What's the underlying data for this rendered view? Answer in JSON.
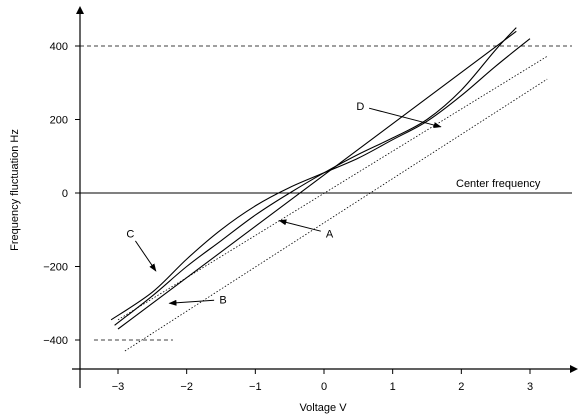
{
  "chart_data": {
    "type": "line",
    "title": "",
    "xlabel": "Voltage  V",
    "ylabel": "Frequency fluctuation  Hz",
    "xlim": [
      -3.55,
      3.55
    ],
    "ylim": [
      -420,
      430
    ],
    "x_ticks": [
      -3,
      -2,
      -1,
      0,
      1,
      2,
      3
    ],
    "x_tick_labels": [
      "−3",
      "−2",
      "−1",
      "0",
      "1",
      "2",
      "3"
    ],
    "y_ticks": [
      -400,
      -200,
      0,
      200,
      400
    ],
    "y_tick_labels": [
      "−400",
      "−200",
      "0",
      "200",
      "400"
    ],
    "grid": false,
    "center_line": {
      "y": 0,
      "label": "Center frequency"
    },
    "limit_lines": [
      {
        "y": 400,
        "x_from": -3.55,
        "x_to": 3.55
      },
      {
        "y": -400,
        "x_from": -3.35,
        "x_to": -2.2
      }
    ],
    "series": [
      {
        "name": "A",
        "style": "solid",
        "x": [
          -3.0,
          2.8
        ],
        "y": [
          -370,
          440
        ]
      },
      {
        "name": "B",
        "style": "dotted",
        "x": [
          -3.0,
          3.25
        ],
        "y": [
          -345,
          372
        ]
      },
      {
        "name": "B",
        "style": "dotted",
        "x": [
          -2.9,
          3.25
        ],
        "y": [
          -430,
          310
        ]
      },
      {
        "name": "C",
        "style": "solid",
        "x": [
          -3.1,
          -2.5,
          -2.0,
          -1.5,
          -1.0,
          -0.5,
          0.0,
          0.5,
          1.0,
          1.5,
          2.0,
          2.5,
          3.0
        ],
        "y": [
          -345,
          -270,
          -180,
          -100,
          -35,
          15,
          55,
          95,
          145,
          195,
          265,
          345,
          420
        ]
      },
      {
        "name": "D",
        "style": "solid",
        "x": [
          -3.05,
          -2.5,
          -2.0,
          -1.5,
          -1.0,
          -0.5,
          0.0,
          0.5,
          1.0,
          1.5,
          2.0,
          2.5,
          2.8
        ],
        "y": [
          -360,
          -280,
          -200,
          -130,
          -60,
          0,
          55,
          105,
          150,
          200,
          280,
          390,
          450
        ]
      }
    ],
    "annotations": [
      {
        "label": "A",
        "text_x": 0.08,
        "text_y": -110,
        "arrow_to_x": -0.65,
        "arrow_to_y": -75
      },
      {
        "label": "B",
        "text_x": -1.47,
        "text_y": -290,
        "arrow_to_x": -2.25,
        "arrow_to_y": -300
      },
      {
        "label": "C",
        "text_x": -2.82,
        "text_y": -110,
        "arrow_to_x": -2.45,
        "arrow_to_y": -212
      },
      {
        "label": "D",
        "text_x": 0.53,
        "text_y": 237,
        "arrow_to_x": 1.7,
        "arrow_to_y": 180
      }
    ]
  }
}
